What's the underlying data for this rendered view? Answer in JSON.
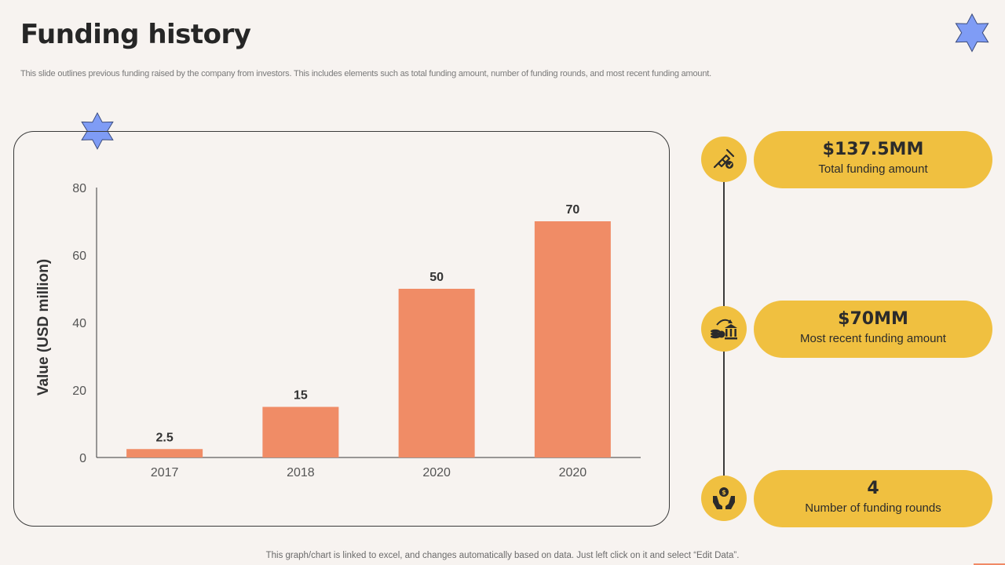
{
  "header": {
    "title": "Funding history",
    "subtitle": "This slide outlines previous funding raised by the company from investors. This includes elements such as total funding amount, number of funding rounds, and most recent funding amount."
  },
  "chart_data": {
    "type": "bar",
    "categories": [
      "2017",
      "2018",
      "2020",
      "2020"
    ],
    "values": [
      2.5,
      15,
      50,
      70
    ],
    "value_labels": [
      "2.5",
      "15",
      "50",
      "70"
    ],
    "title": "",
    "xlabel": "",
    "ylabel": "Value (USD million)",
    "ylim": [
      0,
      80
    ],
    "yticks": [
      "0",
      "20",
      "40",
      "60",
      "80"
    ],
    "bar_color": "#f08c66",
    "grid": false
  },
  "stats": [
    {
      "value": "$137.5MM",
      "label": "Total funding amount",
      "icon": "handshake-icon"
    },
    {
      "value": "$70MM",
      "label": "Most recent funding amount",
      "icon": "coins-to-bank-icon"
    },
    {
      "value": "4",
      "label": "Number of funding rounds",
      "icon": "money-hands-icon"
    }
  ],
  "footer": {
    "note": "This graph/chart is linked to excel, and changes automatically based on data. Just left click on it and select “Edit Data”."
  },
  "colors": {
    "background": "#f7f3f0",
    "accent_yellow": "#f0c040",
    "bar_orange": "#f08c66",
    "star_blue": "#7f9cf5"
  }
}
